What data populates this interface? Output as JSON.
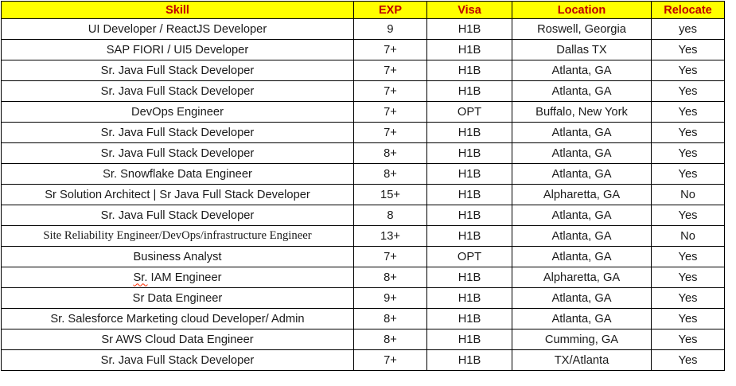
{
  "colors": {
    "header_background": "#ffff00",
    "header_text": "#c00000",
    "body_text": "#1a1a1a",
    "border": "#000000",
    "spellcheck_squiggle": "#ff2a00"
  },
  "table": {
    "columns": [
      "Skill",
      "EXP",
      "Visa",
      "Location",
      "Relocate"
    ],
    "rows": [
      {
        "skill": "UI Developer / ReactJS Developer",
        "exp": "9",
        "visa": "H1B",
        "location": "Roswell, Georgia",
        "relocate": "yes",
        "serif": false,
        "exp_small": false,
        "spellcheck_prefix": ""
      },
      {
        "skill": "SAP FIORI / UI5 Developer",
        "exp": "7+",
        "visa": "H1B",
        "location": "Dallas TX",
        "relocate": "Yes",
        "serif": false,
        "exp_small": false,
        "spellcheck_prefix": ""
      },
      {
        "skill": "Sr. Java Full Stack Developer",
        "exp": "7+",
        "visa": "H1B",
        "location": "Atlanta, GA",
        "relocate": "Yes",
        "serif": false,
        "exp_small": false,
        "spellcheck_prefix": ""
      },
      {
        "skill": "Sr. Java Full Stack Developer",
        "exp": "7+",
        "visa": "H1B",
        "location": "Atlanta, GA",
        "relocate": "Yes",
        "serif": false,
        "exp_small": false,
        "spellcheck_prefix": ""
      },
      {
        "skill": "DevOps Engineer",
        "exp": "7+",
        "visa": "OPT",
        "location": "Buffalo, New York",
        "relocate": "Yes",
        "serif": false,
        "exp_small": false,
        "spellcheck_prefix": ""
      },
      {
        "skill": "Sr. Java Full Stack Developer",
        "exp": "7+",
        "visa": "H1B",
        "location": "Atlanta, GA",
        "relocate": "Yes",
        "serif": false,
        "exp_small": false,
        "spellcheck_prefix": ""
      },
      {
        "skill": "Sr. Java Full Stack Developer",
        "exp": "8+",
        "visa": "H1B",
        "location": "Atlanta, GA",
        "relocate": "Yes",
        "serif": false,
        "exp_small": false,
        "spellcheck_prefix": ""
      },
      {
        "skill": "Sr. Snowflake Data Engineer",
        "exp": "8+",
        "visa": "H1B",
        "location": "Atlanta, GA",
        "relocate": "Yes",
        "serif": false,
        "exp_small": false,
        "spellcheck_prefix": ""
      },
      {
        "skill": "Sr Solution Architect | Sr Java Full Stack Developer",
        "exp": "15+",
        "visa": "H1B",
        "location": "Alpharetta, GA",
        "relocate": "No",
        "serif": false,
        "exp_small": false,
        "spellcheck_prefix": ""
      },
      {
        "skill": "Sr. Java Full Stack Developer",
        "exp": "8",
        "visa": "H1B",
        "location": "Atlanta, GA",
        "relocate": "Yes",
        "serif": false,
        "exp_small": false,
        "spellcheck_prefix": ""
      },
      {
        "skill": "Site Reliability Engineer/DevOps/infrastructure Engineer",
        "exp": "13+",
        "visa": "H1B",
        "location": "Atlanta, GA",
        "relocate": "No",
        "serif": true,
        "exp_small": false,
        "spellcheck_prefix": ""
      },
      {
        "skill": "Business Analyst",
        "exp": "7+",
        "visa": "OPT",
        "location": "Atlanta, GA",
        "relocate": "Yes",
        "serif": false,
        "exp_small": false,
        "spellcheck_prefix": ""
      },
      {
        "skill": "Sr. IAM Engineer",
        "exp": "8+",
        "visa": "H1B",
        "location": "Alpharetta, GA",
        "relocate": "Yes",
        "serif": false,
        "exp_small": false,
        "spellcheck_prefix": "Sr."
      },
      {
        "skill": "Sr Data Engineer",
        "exp": "9+",
        "visa": "H1B",
        "location": "Atlanta, GA",
        "relocate": "Yes",
        "serif": false,
        "exp_small": true,
        "spellcheck_prefix": ""
      },
      {
        "skill": "Sr. Salesforce Marketing cloud Developer/ Admin",
        "exp": "8+",
        "visa": "H1B",
        "location": "Atlanta, GA",
        "relocate": "Yes",
        "serif": false,
        "exp_small": false,
        "spellcheck_prefix": ""
      },
      {
        "skill": "Sr AWS Cloud  Data Engineer",
        "exp": "8+",
        "visa": "H1B",
        "location": "Cumming, GA",
        "relocate": "Yes",
        "serif": false,
        "exp_small": false,
        "spellcheck_prefix": ""
      },
      {
        "skill": "Sr. Java Full Stack Developer",
        "exp": "7+",
        "visa": "H1B",
        "location": "TX/Atlanta",
        "relocate": "Yes",
        "serif": false,
        "exp_small": false,
        "spellcheck_prefix": ""
      }
    ]
  }
}
